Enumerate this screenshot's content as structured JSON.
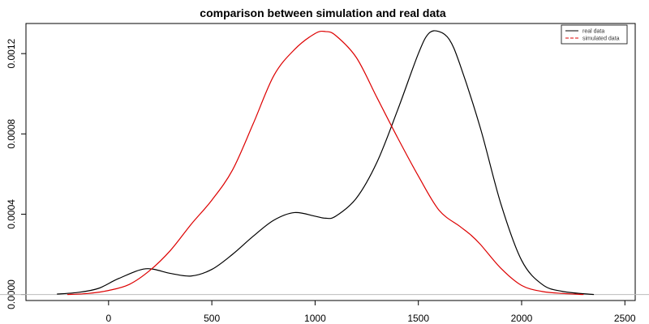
{
  "chart_data": {
    "type": "line",
    "title": "comparison between simulation and real data",
    "xlabel": "",
    "ylabel": "",
    "xlim": [
      -400,
      2550
    ],
    "ylim": [
      -3e-05,
      0.00135
    ],
    "x_ticks": [
      0,
      500,
      1000,
      1500,
      2000,
      2500
    ],
    "x_tick_labels": [
      "0",
      "500",
      "1000",
      "1500",
      "2000",
      "2500"
    ],
    "y_ticks": [
      0.0,
      0.0004,
      0.0008,
      0.0012
    ],
    "y_tick_labels": [
      "0.0000",
      "0.0004",
      "0.0008",
      "0.0012"
    ],
    "horizontal_reference_line": 0,
    "grid": false,
    "legend": {
      "placement": "top-right"
    },
    "series": [
      {
        "name": "real data",
        "color": "#000000",
        "line_style": "solid",
        "x": [
          -250,
          -150,
          -50,
          50,
          180,
          300,
          400,
          500,
          600,
          700,
          800,
          900,
          1000,
          1050,
          1100,
          1200,
          1300,
          1400,
          1500,
          1550,
          1600,
          1650,
          1700,
          1800,
          1900,
          2000,
          2100,
          2200,
          2350
        ],
        "y": [
          2e-06,
          1e-05,
          3e-05,
          8e-05,
          0.000128,
          0.000105,
          9.2e-05,
          0.000125,
          0.0002,
          0.00029,
          0.00037,
          0.000408,
          0.00039,
          0.00038,
          0.00039,
          0.00048,
          0.00066,
          0.00092,
          0.0012,
          0.0013,
          0.00131,
          0.00127,
          0.00115,
          0.00083,
          0.00045,
          0.00017,
          5e-05,
          1.5e-05,
          0.0
        ]
      },
      {
        "name": "simulated data",
        "color": "#dd0000",
        "line_style": "solid",
        "x": [
          -200,
          -100,
          0,
          100,
          200,
          300,
          400,
          500,
          600,
          700,
          800,
          900,
          1000,
          1050,
          1100,
          1200,
          1300,
          1400,
          1500,
          1600,
          1700,
          1750,
          1800,
          1900,
          2000,
          2100,
          2200,
          2300
        ],
        "y": [
          0.0,
          5e-06,
          2e-05,
          5e-05,
          0.00012,
          0.00022,
          0.00035,
          0.00047,
          0.00062,
          0.00085,
          0.00109,
          0.00122,
          0.0013,
          0.00131,
          0.00129,
          0.00118,
          0.00098,
          0.00078,
          0.00059,
          0.00042,
          0.00034,
          0.0003,
          0.00025,
          0.00013,
          4.5e-05,
          1.5e-05,
          5e-06,
          0.0
        ]
      }
    ]
  }
}
